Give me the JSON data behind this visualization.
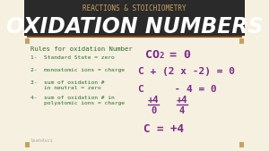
{
  "bg_color": "#f5f0e0",
  "header_bg": "#2a2a2a",
  "top_text": "REACTIONS & STOICHIOMETRY",
  "title": "OXIDATION NUMBERS",
  "title_color": "#1a1a1a",
  "top_text_color": "#c8a060",
  "rules_header": "Rules for oxidation Number",
  "rules": [
    "1-  Standard State = zero",
    "2-  monoatomic ions = charge",
    "3-  sum of oxidation #\n    in neutral = zero",
    "4-  sum of oxidation # in\n    polyatomic ions = charge"
  ],
  "rules_color": "#2a6e2a",
  "eq_color": "#7b2a8a",
  "eq1_parts": [
    "CO",
    "2",
    " = 0"
  ],
  "eq2": "C + (2 x -2) = 0",
  "eq3": "C     - 4 = 0",
  "eq4_left": "+4",
  "eq4_right": "+4",
  "eq5_left": "0",
  "eq5_right": "4",
  "eq6": "C = +4",
  "watermark": "leah4sci",
  "corner_color": "#c8a060"
}
